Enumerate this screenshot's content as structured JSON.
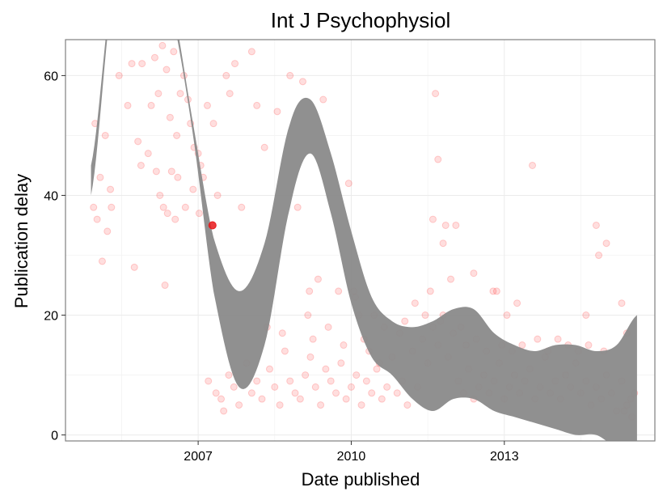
{
  "chart_data": {
    "type": "scatter",
    "title": "Int J Psychophysiol",
    "xlabel": "Date published",
    "ylabel": "Publication delay",
    "x_ticks": [
      "2007",
      "2010",
      "2013"
    ],
    "y_ticks": [
      "0",
      "20",
      "40",
      "60"
    ],
    "xlim": [
      2004.4,
      2015.95
    ],
    "ylim": [
      -1,
      66
    ],
    "grid": true,
    "colors": {
      "points": "#ff0000",
      "band": "#8a8a8a",
      "highlight": "#e8191b",
      "panel_border": "#7f7f7f",
      "grid": "#ebebeb"
    },
    "highlight_point": {
      "x": 2007.28,
      "y": 35
    },
    "smooth_band": {
      "x": [
        2004.9,
        2005.3,
        2005.7,
        2006.1,
        2006.5,
        2006.9,
        2007.3,
        2007.8,
        2008.3,
        2008.8,
        2009.2,
        2009.6,
        2010.0,
        2010.4,
        2010.8,
        2011.2,
        2011.6,
        2012.0,
        2012.4,
        2012.8,
        2013.2,
        2013.6,
        2014.0,
        2014.4,
        2014.8,
        2015.2,
        2015.6
      ],
      "lower": [
        40,
        72,
        84,
        82,
        70,
        50,
        24,
        8,
        15,
        38,
        47,
        37,
        22,
        13,
        10,
        6,
        4,
        6,
        6,
        4,
        3,
        2,
        1,
        0,
        0,
        -2,
        -2
      ],
      "upper": [
        45,
        74,
        86,
        84,
        72,
        52,
        33,
        24,
        32,
        52,
        56,
        47,
        34,
        23,
        19,
        18,
        19,
        21,
        21,
        17,
        15,
        14,
        15,
        15,
        14,
        15,
        20
      ]
    },
    "series": [
      {
        "points": [
          [
            2004.98,
            52
          ],
          [
            2005.08,
            43
          ],
          [
            2005.18,
            50
          ],
          [
            2005.28,
            41
          ],
          [
            2004.95,
            38
          ],
          [
            2005.02,
            36
          ],
          [
            2005.12,
            29
          ],
          [
            2005.22,
            34
          ],
          [
            2005.3,
            38
          ],
          [
            2005.45,
            60
          ],
          [
            2005.62,
            55
          ],
          [
            2005.7,
            62
          ],
          [
            2005.82,
            49
          ],
          [
            2005.9,
            62
          ],
          [
            2006.02,
            47
          ],
          [
            2006.08,
            55
          ],
          [
            2006.15,
            63
          ],
          [
            2006.22,
            57
          ],
          [
            2006.3,
            65
          ],
          [
            2006.38,
            61
          ],
          [
            2006.45,
            53
          ],
          [
            2006.52,
            64
          ],
          [
            2006.58,
            50
          ],
          [
            2006.65,
            57
          ],
          [
            2006.72,
            60
          ],
          [
            2006.8,
            56
          ],
          [
            2006.85,
            52
          ],
          [
            2006.92,
            48
          ],
          [
            2007.0,
            47
          ],
          [
            2007.05,
            45
          ],
          [
            2007.1,
            43
          ],
          [
            2006.18,
            44
          ],
          [
            2006.25,
            40
          ],
          [
            2006.32,
            38
          ],
          [
            2006.4,
            37
          ],
          [
            2006.48,
            44
          ],
          [
            2006.55,
            36
          ],
          [
            2006.6,
            43
          ],
          [
            2006.75,
            38
          ],
          [
            2006.9,
            41
          ],
          [
            2007.02,
            37
          ],
          [
            2005.88,
            45
          ],
          [
            2005.75,
            28
          ],
          [
            2006.35,
            25
          ],
          [
            2007.18,
            55
          ],
          [
            2007.3,
            52
          ],
          [
            2007.38,
            40
          ],
          [
            2007.55,
            60
          ],
          [
            2007.62,
            57
          ],
          [
            2007.72,
            62
          ],
          [
            2007.85,
            38
          ],
          [
            2008.05,
            64
          ],
          [
            2008.15,
            55
          ],
          [
            2008.3,
            48
          ],
          [
            2008.55,
            54
          ],
          [
            2008.8,
            60
          ],
          [
            2009.05,
            59
          ],
          [
            2008.95,
            38
          ],
          [
            2009.45,
            56
          ],
          [
            2009.95,
            42
          ],
          [
            2011.65,
            57
          ],
          [
            2011.7,
            46
          ],
          [
            2012.05,
            35
          ],
          [
            2011.85,
            35
          ],
          [
            2011.8,
            32
          ],
          [
            2011.6,
            36
          ],
          [
            2013.55,
            45
          ],
          [
            2014.8,
            35
          ],
          [
            2015.0,
            32
          ],
          [
            2015.3,
            22
          ],
          [
            2014.6,
            20
          ],
          [
            2014.85,
            30
          ],
          [
            2015.4,
            17
          ],
          [
            2012.78,
            24
          ],
          [
            2012.85,
            24
          ],
          [
            2013.25,
            22
          ],
          [
            2013.05,
            20
          ],
          [
            2012.4,
            27
          ],
          [
            2007.2,
            9
          ],
          [
            2007.35,
            7
          ],
          [
            2007.45,
            6
          ],
          [
            2007.5,
            4
          ],
          [
            2007.6,
            10
          ],
          [
            2007.7,
            8
          ],
          [
            2007.8,
            5
          ],
          [
            2007.95,
            12
          ],
          [
            2008.05,
            7
          ],
          [
            2008.15,
            9
          ],
          [
            2008.25,
            6
          ],
          [
            2008.4,
            11
          ],
          [
            2008.5,
            8
          ],
          [
            2008.6,
            5
          ],
          [
            2008.7,
            14
          ],
          [
            2008.8,
            9
          ],
          [
            2008.9,
            7
          ],
          [
            2009.0,
            6
          ],
          [
            2009.1,
            10
          ],
          [
            2009.2,
            13
          ],
          [
            2009.3,
            8
          ],
          [
            2009.4,
            5
          ],
          [
            2009.5,
            11
          ],
          [
            2009.6,
            9
          ],
          [
            2009.7,
            7
          ],
          [
            2009.8,
            12
          ],
          [
            2009.9,
            6
          ],
          [
            2010.0,
            8
          ],
          [
            2010.1,
            10
          ],
          [
            2010.2,
            5
          ],
          [
            2010.3,
            9
          ],
          [
            2010.4,
            7
          ],
          [
            2010.5,
            11
          ],
          [
            2010.6,
            6
          ],
          [
            2010.7,
            8
          ],
          [
            2010.8,
            13
          ],
          [
            2010.9,
            7
          ],
          [
            2011.0,
            9
          ],
          [
            2011.1,
            5
          ],
          [
            2011.2,
            14
          ],
          [
            2011.3,
            8
          ],
          [
            2011.4,
            16
          ],
          [
            2011.5,
            12
          ],
          [
            2011.6,
            18
          ],
          [
            2011.7,
            15
          ],
          [
            2011.8,
            20
          ],
          [
            2011.9,
            13
          ],
          [
            2012.0,
            17
          ],
          [
            2012.1,
            9
          ],
          [
            2012.2,
            7
          ],
          [
            2012.3,
            11
          ],
          [
            2012.4,
            6
          ],
          [
            2012.5,
            8
          ],
          [
            2012.6,
            10
          ],
          [
            2012.7,
            7
          ],
          [
            2012.8,
            9
          ],
          [
            2012.9,
            12
          ],
          [
            2013.0,
            6
          ],
          [
            2013.1,
            8
          ],
          [
            2013.2,
            10
          ],
          [
            2013.3,
            7
          ],
          [
            2013.4,
            9
          ],
          [
            2013.5,
            11
          ],
          [
            2013.6,
            6
          ],
          [
            2013.7,
            8
          ],
          [
            2013.8,
            13
          ],
          [
            2013.9,
            7
          ],
          [
            2014.0,
            9
          ],
          [
            2014.1,
            6
          ],
          [
            2014.2,
            10
          ],
          [
            2014.3,
            8
          ],
          [
            2014.4,
            12
          ],
          [
            2014.5,
            7
          ],
          [
            2014.6,
            9
          ],
          [
            2014.7,
            5
          ],
          [
            2014.8,
            8
          ],
          [
            2014.9,
            6
          ],
          [
            2015.0,
            10
          ],
          [
            2015.1,
            7
          ],
          [
            2015.2,
            4
          ],
          [
            2015.3,
            9
          ],
          [
            2015.4,
            5
          ],
          [
            2015.5,
            3
          ],
          [
            2015.55,
            7
          ],
          [
            2015.48,
            6
          ],
          [
            2015.35,
            4
          ],
          [
            2008.35,
            18
          ],
          [
            2008.65,
            17
          ],
          [
            2009.15,
            20
          ],
          [
            2009.25,
            16
          ],
          [
            2009.55,
            18
          ],
          [
            2009.85,
            15
          ],
          [
            2010.05,
            24
          ],
          [
            2010.15,
            20
          ],
          [
            2010.25,
            16
          ],
          [
            2010.45,
            20
          ],
          [
            2010.65,
            18
          ],
          [
            2010.95,
            17
          ],
          [
            2011.05,
            19
          ],
          [
            2011.25,
            22
          ],
          [
            2011.45,
            20
          ],
          [
            2011.55,
            24
          ],
          [
            2011.75,
            19
          ],
          [
            2011.95,
            26
          ],
          [
            2012.15,
            18
          ],
          [
            2012.25,
            15
          ],
          [
            2012.45,
            16
          ],
          [
            2012.65,
            14
          ],
          [
            2012.95,
            15
          ],
          [
            2013.15,
            14
          ],
          [
            2013.35,
            15
          ],
          [
            2013.65,
            16
          ],
          [
            2013.85,
            14
          ],
          [
            2014.05,
            16
          ],
          [
            2014.25,
            15
          ],
          [
            2014.45,
            14
          ],
          [
            2014.65,
            15
          ],
          [
            2014.95,
            14
          ],
          [
            2010.08,
            23
          ],
          [
            2009.75,
            24
          ],
          [
            2010.35,
            14
          ],
          [
            2010.55,
            12
          ],
          [
            2009.35,
            26
          ],
          [
            2009.18,
            24
          ]
        ]
      }
    ]
  }
}
